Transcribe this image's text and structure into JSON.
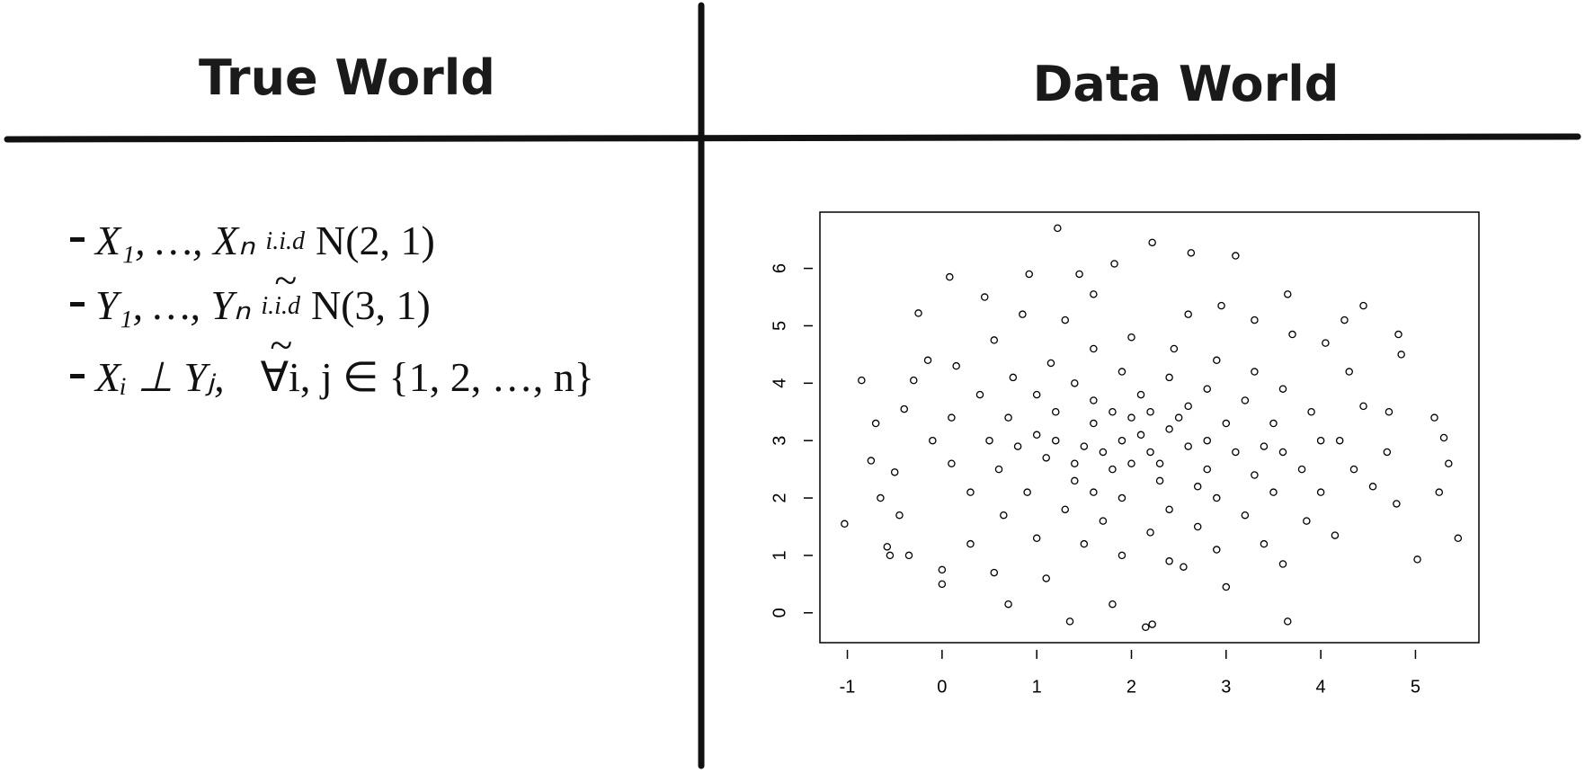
{
  "left": {
    "title": "True World",
    "items": [
      {
        "text": "X₁, …, Xₙ",
        "over": "i.i.d",
        "sym": "~",
        "rest": "N(2, 1)"
      },
      {
        "text": "Y₁, …, Yₙ",
        "over": "i.i.d",
        "sym": "~",
        "rest": "N(3, 1)"
      },
      {
        "text": "Xᵢ ⊥ Yⱼ,",
        "rest": "∀i, j ∈ {1, 2, …, n}"
      }
    ]
  },
  "right": {
    "title": "Data World"
  },
  "chart_data": {
    "type": "scatter",
    "color": "#000000",
    "xlim": [
      -1.29,
      5.67
    ],
    "ylim": [
      -0.52,
      6.98
    ],
    "xticks": [
      -1,
      0,
      1,
      2,
      3,
      4,
      5
    ],
    "yticks": [
      0,
      1,
      2,
      3,
      4,
      5,
      6
    ],
    "x": [
      -1.03,
      -0.85,
      1.22,
      2.22,
      2.63,
      3.1,
      1.82,
      0.08,
      0.92,
      1.45,
      -0.25,
      0.45,
      -0.15,
      -0.5,
      -0.65,
      -0.58,
      -0.55,
      -0.35,
      0.0,
      0.0,
      0.7,
      1.35,
      2.15,
      2.22,
      3.65,
      1.8,
      5.02,
      5.45,
      5.25,
      5.35,
      5.2,
      5.3,
      4.82,
      4.85,
      4.45,
      3.65,
      4.25,
      4.72,
      4.7,
      4.55,
      4.8,
      4.15,
      3.6,
      3.0,
      2.55,
      1.1,
      0.55,
      0.3,
      -0.45,
      -0.75,
      -0.7,
      -0.4,
      -0.3,
      0.15,
      0.55,
      0.85,
      1.3,
      1.6,
      2.6,
      2.95,
      3.3,
      3.7,
      4.05,
      4.3,
      4.45,
      4.2,
      4.35,
      4.0,
      3.85,
      3.4,
      2.9,
      2.4,
      1.9,
      1.5,
      1.0,
      0.65,
      0.3,
      0.1,
      -0.1,
      0.1,
      0.4,
      0.75,
      1.15,
      1.6,
      2.0,
      2.45,
      2.9,
      3.3,
      3.6,
      3.9,
      4.0,
      3.8,
      3.5,
      3.2,
      2.7,
      2.2,
      1.7,
      1.3,
      0.9,
      0.6,
      0.5,
      0.7,
      1.0,
      1.4,
      1.9,
      2.4,
      2.8,
      3.2,
      3.5,
      3.6,
      3.3,
      2.9,
      2.4,
      1.9,
      1.4,
      1.1,
      1.0,
      1.2,
      1.6,
      2.1,
      2.6,
      3.0,
      3.1,
      2.8,
      2.3,
      1.8,
      1.5,
      1.6,
      2.0,
      2.4,
      2.6,
      2.2,
      1.9,
      2.1,
      2.3,
      1.7,
      2.5,
      1.2,
      2.8,
      1.4,
      2.0,
      2.7,
      1.6,
      3.4,
      0.8,
      2.2,
      1.8
    ],
    "values": [
      1.55,
      4.05,
      6.7,
      6.45,
      6.27,
      6.22,
      6.08,
      5.85,
      5.9,
      5.9,
      5.22,
      5.5,
      4.4,
      2.45,
      2.0,
      1.15,
      1.0,
      1.0,
      0.5,
      0.75,
      0.15,
      -0.15,
      -0.25,
      -0.2,
      -0.15,
      0.15,
      0.93,
      1.3,
      2.1,
      2.6,
      3.4,
      3.05,
      4.85,
      4.5,
      5.35,
      5.55,
      5.1,
      3.5,
      2.8,
      2.2,
      1.9,
      1.35,
      0.85,
      0.45,
      0.8,
      0.6,
      0.7,
      1.2,
      1.7,
      2.65,
      3.3,
      3.55,
      4.05,
      4.3,
      4.75,
      5.2,
      5.1,
      5.55,
      5.2,
      5.35,
      5.1,
      4.85,
      4.7,
      4.2,
      3.6,
      3.0,
      2.5,
      2.1,
      1.6,
      1.2,
      1.1,
      0.9,
      1.0,
      1.2,
      1.3,
      1.7,
      2.1,
      2.6,
      3.0,
      3.4,
      3.8,
      4.1,
      4.35,
      4.6,
      4.8,
      4.6,
      4.4,
      4.2,
      3.9,
      3.5,
      3.0,
      2.5,
      2.1,
      1.7,
      1.5,
      1.4,
      1.6,
      1.8,
      2.1,
      2.5,
      3.0,
      3.4,
      3.8,
      4.0,
      4.2,
      4.1,
      3.9,
      3.7,
      3.3,
      2.8,
      2.4,
      2.0,
      1.8,
      2.0,
      2.3,
      2.7,
      3.1,
      3.5,
      3.7,
      3.8,
      3.6,
      3.3,
      2.8,
      2.5,
      2.3,
      2.5,
      2.9,
      3.3,
      3.4,
      3.2,
      2.9,
      2.8,
      3.0,
      3.1,
      2.6,
      2.8,
      3.4,
      3.0,
      3.0,
      2.6,
      2.6,
      2.2,
      2.1,
      2.9,
      2.9,
      3.5,
      3.5
    ]
  }
}
